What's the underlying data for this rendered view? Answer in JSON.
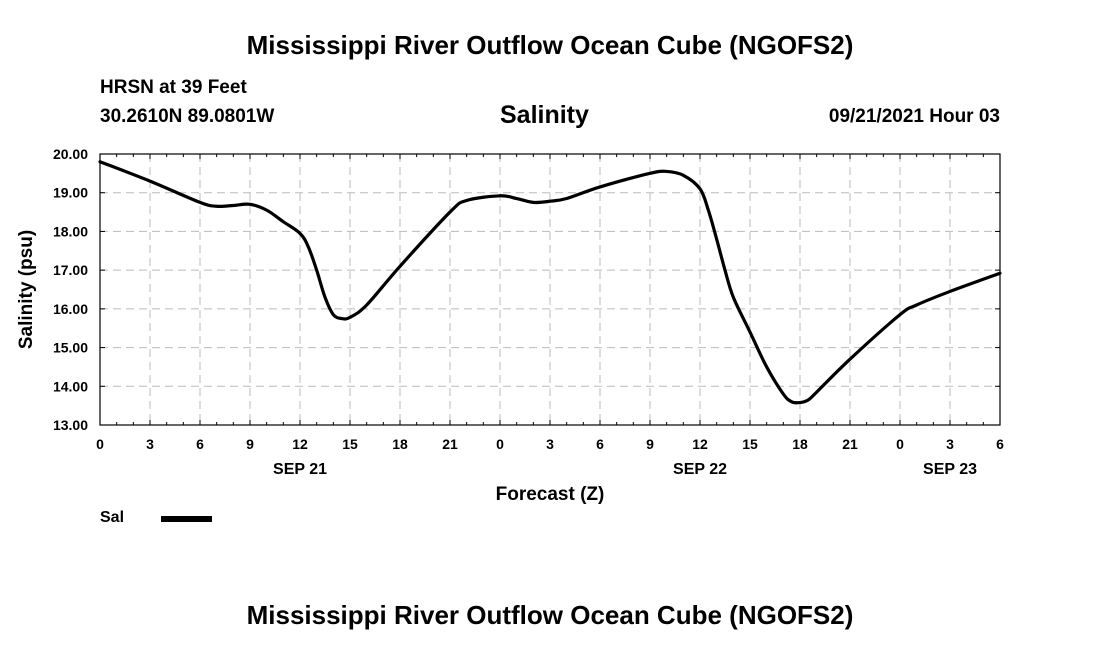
{
  "header": {
    "title": "Mississippi River Outflow Ocean Cube (NGOFS2)",
    "station": "HRSN at 39 Feet",
    "coords": "30.2610N  89.0801W",
    "variable": "Salinity",
    "datetime": "09/21/2021 Hour 03"
  },
  "footer": {
    "title": "Mississippi River Outflow Ocean Cube (NGOFS2)"
  },
  "legend": {
    "label": "Sal"
  },
  "chart_data": {
    "type": "line",
    "title": "Salinity",
    "xlabel": "Forecast (Z)",
    "ylabel": "Salinity (psu)",
    "xlim": [
      0,
      54
    ],
    "ylim": [
      13,
      20
    ],
    "grid": true,
    "x_ticks": [
      0,
      3,
      6,
      9,
      12,
      15,
      18,
      21,
      24,
      27,
      30,
      33,
      36,
      39,
      42,
      45,
      48,
      51,
      54
    ],
    "x_tick_labels": [
      "0",
      "3",
      "6",
      "9",
      "12",
      "15",
      "18",
      "21",
      "0",
      "3",
      "6",
      "9",
      "12",
      "15",
      "18",
      "21",
      "0",
      "3",
      "6"
    ],
    "y_ticks": [
      13,
      14,
      15,
      16,
      17,
      18,
      19,
      20
    ],
    "y_tick_labels": [
      "13.00",
      "14.00",
      "15.00",
      "16.00",
      "17.00",
      "18.00",
      "19.00",
      "20.00"
    ],
    "date_labels": [
      {
        "x": 12,
        "label": "SEP 21"
      },
      {
        "x": 36,
        "label": "SEP 22"
      },
      {
        "x": 51,
        "label": "SEP 23"
      }
    ],
    "series": [
      {
        "name": "Sal",
        "color": "#000000",
        "x": [
          0,
          3,
          6,
          7,
          8,
          9,
          10,
          11,
          12,
          12.5,
          13,
          13.5,
          14,
          14.5,
          15,
          16,
          18,
          21,
          22,
          24,
          25,
          26,
          27,
          28,
          30,
          33,
          34,
          35,
          36,
          36.5,
          37,
          37.5,
          38,
          39,
          40,
          41,
          41.5,
          42,
          42.5,
          43,
          45,
          48,
          49,
          51,
          54
        ],
        "values": [
          19.8,
          19.3,
          18.75,
          18.65,
          18.67,
          18.7,
          18.55,
          18.25,
          17.95,
          17.6,
          17.0,
          16.3,
          15.85,
          15.75,
          15.78,
          16.1,
          17.1,
          18.5,
          18.8,
          18.92,
          18.85,
          18.75,
          18.78,
          18.85,
          19.15,
          19.5,
          19.55,
          19.45,
          19.1,
          18.55,
          17.8,
          17.0,
          16.3,
          15.4,
          14.5,
          13.8,
          13.6,
          13.58,
          13.65,
          13.85,
          14.7,
          15.85,
          16.1,
          16.45,
          16.92
        ]
      }
    ]
  }
}
